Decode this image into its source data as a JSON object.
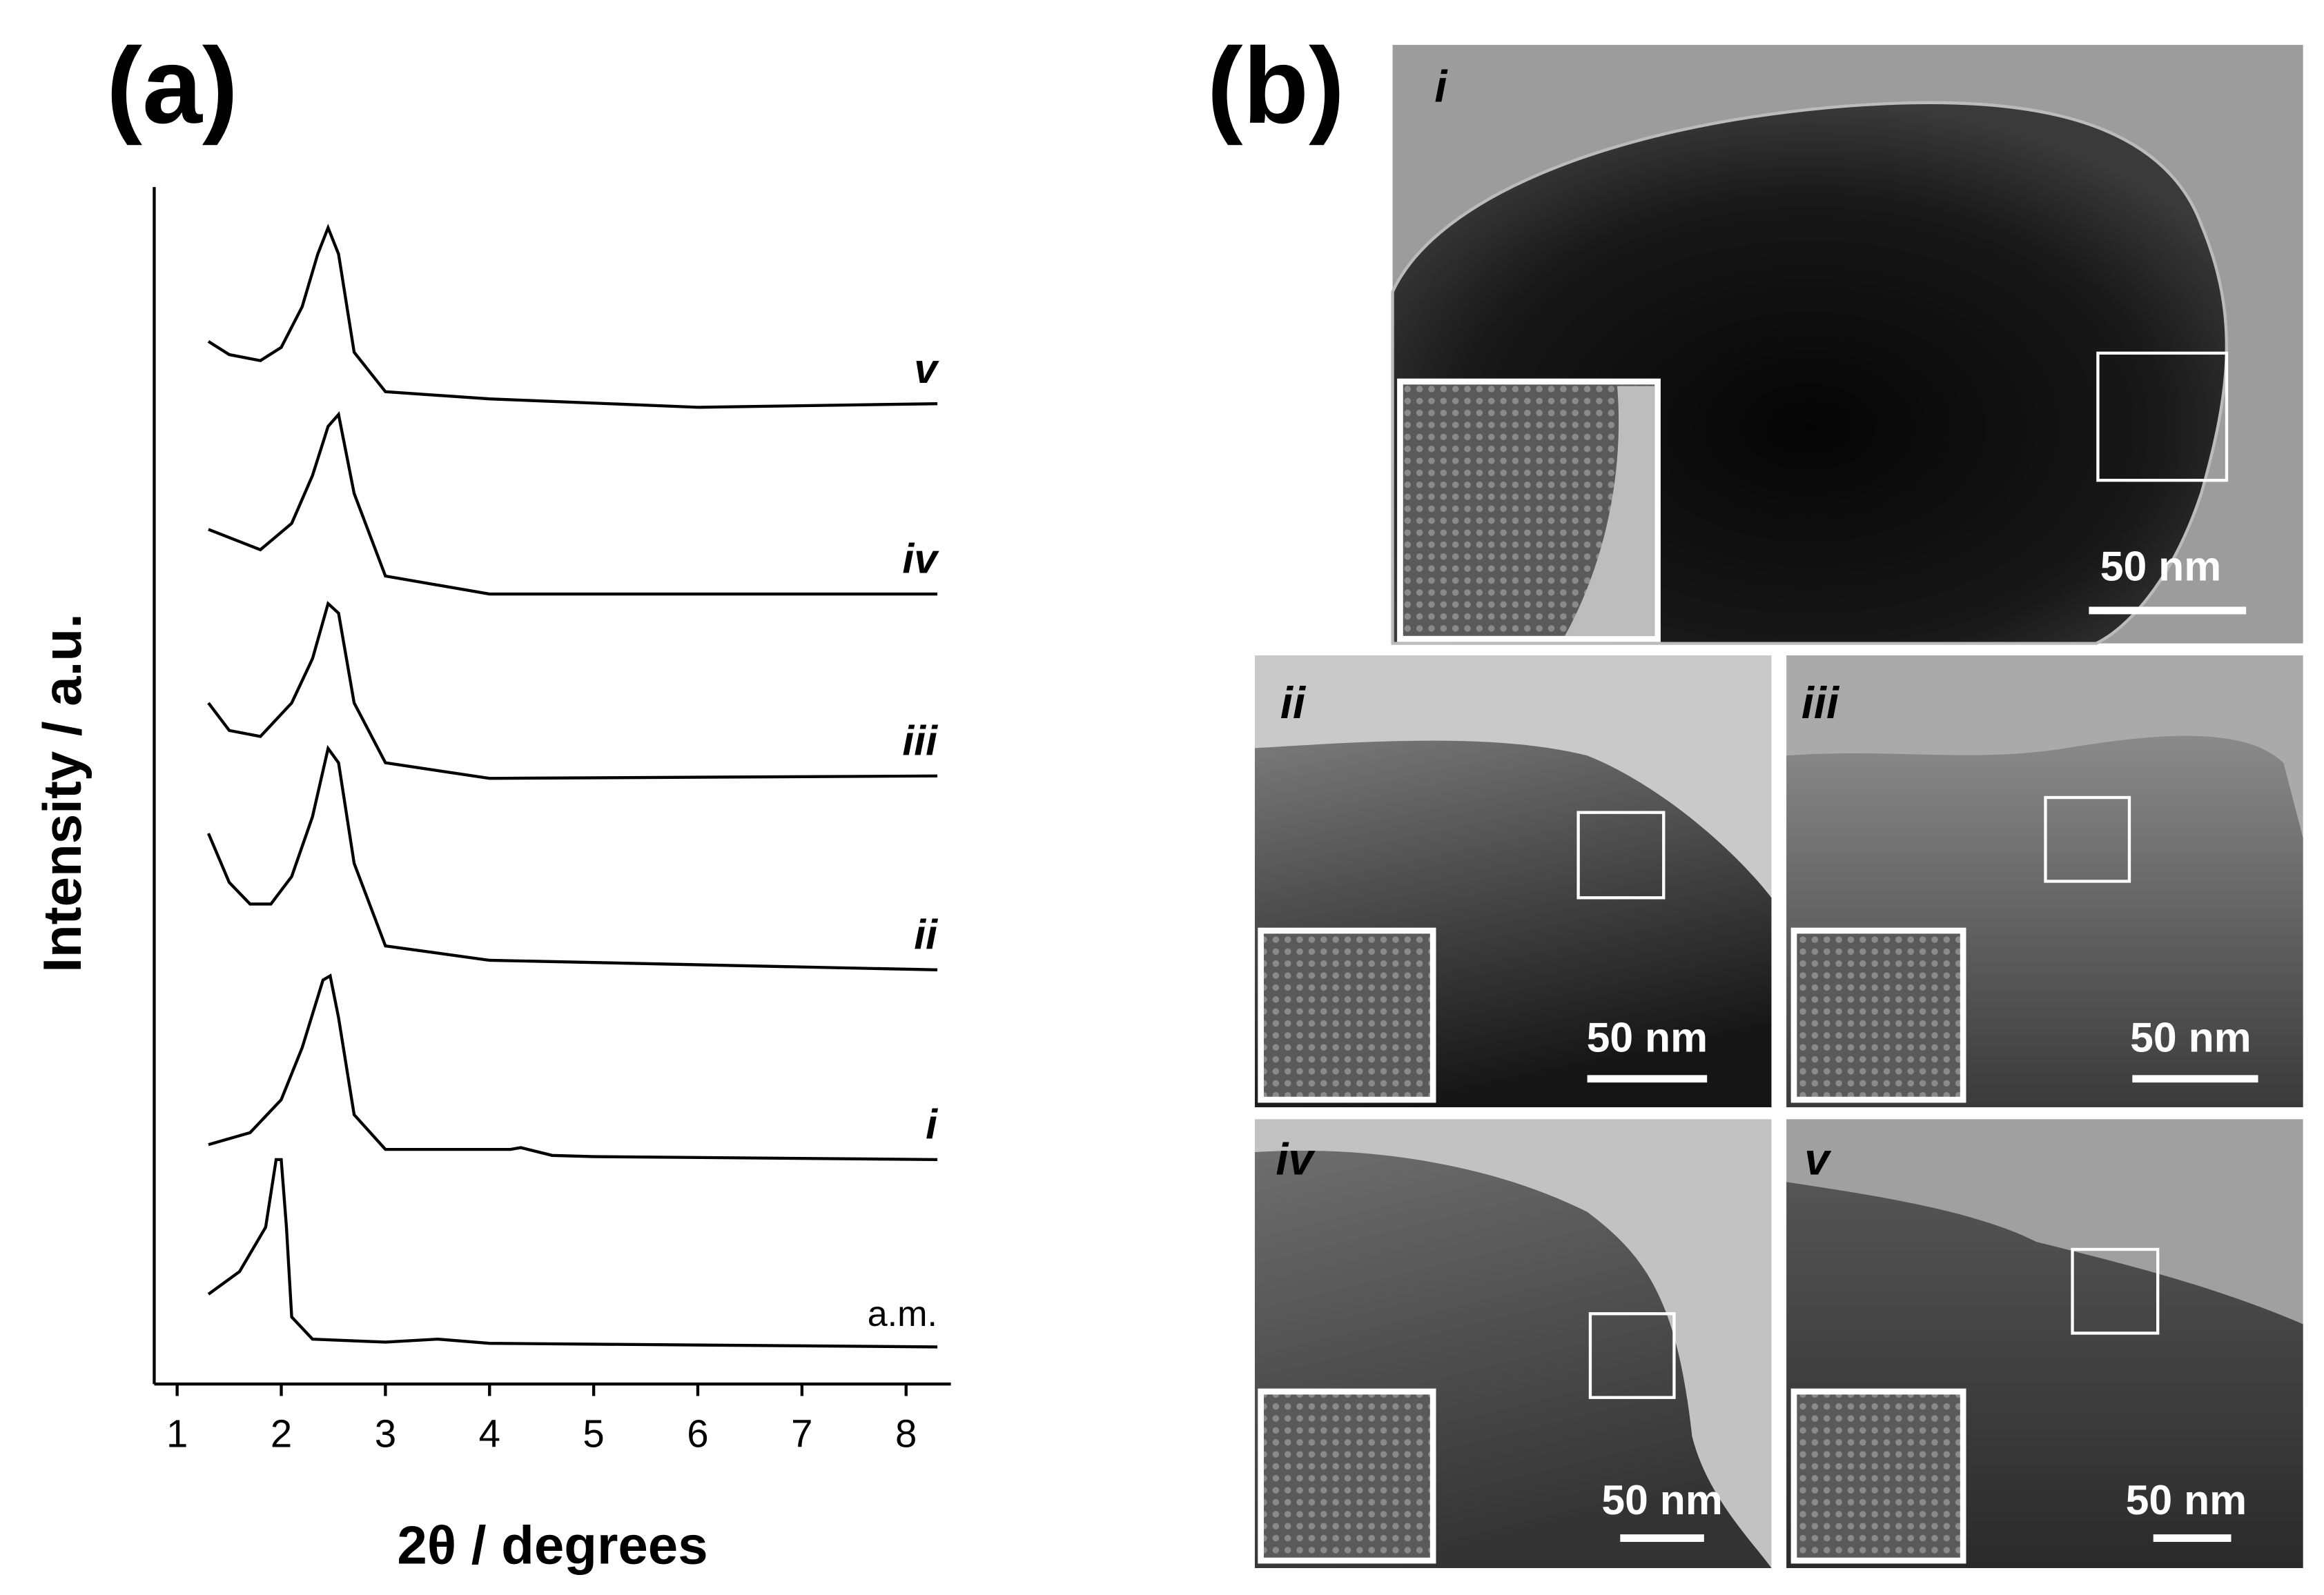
{
  "chart_data": {
    "type": "line",
    "panel_label": "(a)",
    "x_label": "2θ / degrees",
    "y_label": "Intensity / a.u.",
    "xlim": [
      0.78,
      8.43
    ],
    "xticks": [
      1,
      2,
      3,
      4,
      5,
      6,
      7,
      8
    ],
    "ylim": [
      0,
      100
    ],
    "series": [
      {
        "name": "a.m.",
        "italic": false,
        "color": "#000000",
        "x": [
          1.3,
          1.6,
          1.85,
          1.95,
          2.0,
          2.05,
          2.1,
          2.3,
          3.0,
          3.5,
          4.0,
          8.3
        ],
        "values": [
          7.5,
          9.4,
          13.1,
          18.75,
          18.75,
          13.1,
          5.6,
          3.75,
          3.5,
          3.75,
          3.4,
          3.1
        ]
      },
      {
        "name": "i",
        "italic": true,
        "color": "#000000",
        "x": [
          1.3,
          1.7,
          2.0,
          2.2,
          2.4,
          2.47,
          2.55,
          2.7,
          3.0,
          4.2,
          4.3,
          4.6,
          5.0,
          8.3
        ],
        "values": [
          20,
          21,
          23.75,
          28.1,
          33.75,
          34.1,
          30.6,
          22.5,
          19.6,
          19.6,
          19.75,
          19.1,
          19,
          18.75
        ]
      },
      {
        "name": "ii",
        "italic": true,
        "color": "#000000",
        "x": [
          1.3,
          1.5,
          1.7,
          1.9,
          2.1,
          2.3,
          2.45,
          2.55,
          2.7,
          3.0,
          4.0,
          8.3
        ],
        "values": [
          46,
          41.9,
          40.1,
          40.1,
          42.4,
          47.4,
          53.1,
          51.9,
          43.5,
          36.6,
          35.4,
          34.6
        ]
      },
      {
        "name": "iii",
        "italic": true,
        "color": "#000000",
        "x": [
          1.3,
          1.5,
          1.8,
          2.1,
          2.3,
          2.45,
          2.55,
          2.7,
          3.0,
          4.0,
          8.3
        ],
        "values": [
          56.9,
          54.6,
          54.1,
          56.9,
          60.6,
          65.2,
          64.4,
          56.9,
          51.9,
          50.6,
          50.8
        ]
      },
      {
        "name": "iv",
        "italic": true,
        "color": "#000000",
        "x": [
          1.3,
          1.8,
          2.1,
          2.3,
          2.45,
          2.55,
          2.7,
          3.0,
          4.0,
          8.3
        ],
        "values": [
          71.4,
          69.7,
          71.9,
          75.9,
          80,
          81,
          74.4,
          67.5,
          66,
          66
        ]
      },
      {
        "name": "v",
        "italic": true,
        "color": "#000000",
        "x": [
          1.3,
          1.5,
          1.8,
          2.0,
          2.2,
          2.35,
          2.45,
          2.55,
          2.7,
          3.0,
          4.0,
          6.0,
          8.3
        ],
        "values": [
          87.1,
          86,
          85.5,
          86.6,
          90,
          94.4,
          96.6,
          94.4,
          86.2,
          82.9,
          82.3,
          81.6,
          81.9
        ]
      }
    ]
  },
  "panel_b": {
    "label": "(b)",
    "images": [
      {
        "label": "i",
        "scale_bar": "50 nm"
      },
      {
        "label": "ii",
        "scale_bar": "50 nm"
      },
      {
        "label": "iii",
        "scale_bar": "50 nm"
      },
      {
        "label": "iv",
        "scale_bar": "50 nm"
      },
      {
        "label": "v",
        "scale_bar": "50 nm"
      }
    ]
  }
}
